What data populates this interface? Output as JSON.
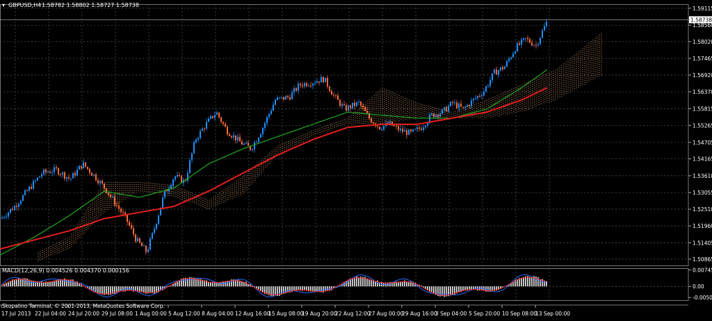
{
  "header": {
    "symbol_label": "GBPUSD,H4",
    "ohlc_label": "1.58782 1.58802 1.58727 1.58738"
  },
  "macd_label": "MACD(12,26,9) 0.004526 0.004370 0.000156",
  "footer_text": "Skopalino Terminal, © 2001-2013, MetaQuotes Software Corp.",
  "price_axis": {
    "ticks": [
      "1.59115",
      "1.58560",
      "1.58020",
      "1.57465",
      "1.56920",
      "1.56370",
      "1.55815",
      "1.55265",
      "1.54705",
      "1.54165",
      "1.53610",
      "1.53055",
      "1.52510",
      "1.51960",
      "1.51405",
      "1.50865"
    ],
    "current_price": "1.58738"
  },
  "macd_axis": {
    "ticks": [
      "0.00745",
      "0.00",
      "-0.0050"
    ]
  },
  "time_axis": {
    "ticks": [
      "17 Jul 2013",
      "22 Jul 04:00",
      "24 Jul 20:00",
      "29 Jul 08:00",
      "1 Aug 00:00",
      "5 Aug 12:00",
      "8 Aug 04:00",
      "12 Aug 16:00",
      "15 Aug 08:00",
      "19 Aug 20:00",
      "22 Aug 12:00",
      "27 Aug 00:00",
      "29 Aug 16:00",
      "3 Sep 04:00",
      "5 Sep 20:00",
      "10 Sep 08:00",
      "13 Sep 00:00"
    ]
  },
  "colors": {
    "background": "#000000",
    "grid": "#5a5a5a",
    "bull_candle": "#1e90ff",
    "bear_candle": "#ff6a3a",
    "ma_fast": "#1f9e1f",
    "ma_slow": "#e81e1e",
    "cloud": "#d8a070",
    "macd_histogram": "#d8d8d8",
    "macd_main": "#2b6cff",
    "macd_signal": "#e81e1e",
    "text": "#ffffff"
  },
  "chart_data": {
    "type": "candlestick",
    "symbol": "GBPUSD",
    "timeframe": "H4",
    "ylim": [
      1.5066,
      1.5925
    ],
    "current_price": 1.58738,
    "last_bar": {
      "open": 1.58782,
      "high": 1.58802,
      "low": 1.58727,
      "close": 1.58738
    },
    "price_path": [
      [
        0,
        1.522
      ],
      [
        20,
        1.526
      ],
      [
        45,
        1.533
      ],
      [
        60,
        1.537
      ],
      [
        80,
        1.538
      ],
      [
        100,
        1.535
      ],
      [
        118,
        1.54
      ],
      [
        135,
        1.536
      ],
      [
        150,
        1.532
      ],
      [
        165,
        1.527
      ],
      [
        180,
        1.522
      ],
      [
        195,
        1.515
      ],
      [
        210,
        1.511
      ],
      [
        220,
        1.518
      ],
      [
        235,
        1.53
      ],
      [
        250,
        1.536
      ],
      [
        265,
        1.534
      ],
      [
        280,
        1.548
      ],
      [
        295,
        1.553
      ],
      [
        310,
        1.557
      ],
      [
        325,
        1.551
      ],
      [
        345,
        1.547
      ],
      [
        360,
        1.545
      ],
      [
        375,
        1.551
      ],
      [
        395,
        1.561
      ],
      [
        415,
        1.562
      ],
      [
        430,
        1.566
      ],
      [
        450,
        1.567
      ],
      [
        465,
        1.568
      ],
      [
        480,
        1.562
      ],
      [
        495,
        1.558
      ],
      [
        515,
        1.56
      ],
      [
        530,
        1.555
      ],
      [
        545,
        1.552
      ],
      [
        560,
        1.553
      ],
      [
        575,
        1.551
      ],
      [
        590,
        1.55
      ],
      [
        605,
        1.552
      ],
      [
        620,
        1.556
      ],
      [
        635,
        1.557
      ],
      [
        650,
        1.56
      ],
      [
        665,
        1.558
      ],
      [
        680,
        1.561
      ],
      [
        695,
        1.564
      ],
      [
        710,
        1.57
      ],
      [
        725,
        1.572
      ],
      [
        740,
        1.578
      ],
      [
        755,
        1.581
      ],
      [
        770,
        1.579
      ],
      [
        780,
        1.584
      ],
      [
        787,
        1.5874
      ]
    ],
    "ma_fast": [
      [
        0,
        1.51
      ],
      [
        50,
        1.516
      ],
      [
        100,
        1.523
      ],
      [
        150,
        1.531
      ],
      [
        200,
        1.529
      ],
      [
        250,
        1.532
      ],
      [
        300,
        1.54
      ],
      [
        350,
        1.545
      ],
      [
        400,
        1.549
      ],
      [
        450,
        1.553
      ],
      [
        500,
        1.557
      ],
      [
        550,
        1.556
      ],
      [
        600,
        1.555
      ],
      [
        650,
        1.555
      ],
      [
        700,
        1.558
      ],
      [
        750,
        1.565
      ],
      [
        787,
        1.571
      ]
    ],
    "ma_slow": [
      [
        0,
        1.512
      ],
      [
        50,
        1.515
      ],
      [
        100,
        1.518
      ],
      [
        150,
        1.522
      ],
      [
        200,
        1.524
      ],
      [
        250,
        1.526
      ],
      [
        300,
        1.531
      ],
      [
        350,
        1.537
      ],
      [
        400,
        1.543
      ],
      [
        450,
        1.548
      ],
      [
        500,
        1.552
      ],
      [
        550,
        1.553
      ],
      [
        600,
        1.553
      ],
      [
        650,
        1.555
      ],
      [
        700,
        1.557
      ],
      [
        750,
        1.561
      ],
      [
        787,
        1.565
      ]
    ],
    "cloud_upper": [
      [
        55,
        1.511
      ],
      [
        100,
        1.516
      ],
      [
        150,
        1.534
      ],
      [
        200,
        1.534
      ],
      [
        250,
        1.533
      ],
      [
        300,
        1.528
      ],
      [
        350,
        1.536
      ],
      [
        400,
        1.546
      ],
      [
        450,
        1.551
      ],
      [
        500,
        1.555
      ],
      [
        550,
        1.565
      ],
      [
        600,
        1.56
      ],
      [
        650,
        1.557
      ],
      [
        700,
        1.561
      ],
      [
        750,
        1.566
      ],
      [
        800,
        1.571
      ],
      [
        865,
        1.583
      ]
    ],
    "cloud_lower": [
      [
        55,
        1.508
      ],
      [
        100,
        1.512
      ],
      [
        150,
        1.524
      ],
      [
        200,
        1.531
      ],
      [
        250,
        1.529
      ],
      [
        300,
        1.525
      ],
      [
        350,
        1.53
      ],
      [
        400,
        1.543
      ],
      [
        450,
        1.549
      ],
      [
        500,
        1.553
      ],
      [
        550,
        1.553
      ],
      [
        600,
        1.555
      ],
      [
        650,
        1.555
      ],
      [
        700,
        1.555
      ],
      [
        750,
        1.557
      ],
      [
        800,
        1.561
      ],
      [
        865,
        1.569
      ]
    ],
    "macd": {
      "label": "MACD(12,26,9)",
      "main": 0.004526,
      "signal": 0.00437,
      "histogram": 0.000156,
      "ylim": [
        -0.0062,
        0.0082
      ]
    }
  }
}
